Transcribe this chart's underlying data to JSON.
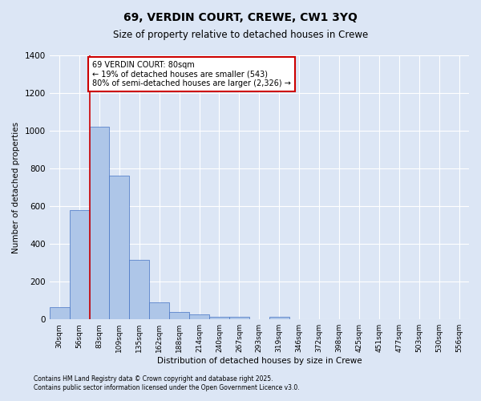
{
  "title": "69, VERDIN COURT, CREWE, CW1 3YQ",
  "subtitle": "Size of property relative to detached houses in Crewe",
  "xlabel": "Distribution of detached houses by size in Crewe",
  "ylabel": "Number of detached properties",
  "footer_line1": "Contains HM Land Registry data © Crown copyright and database right 2025.",
  "footer_line2": "Contains public sector information licensed under the Open Government Licence v3.0.",
  "bin_labels": [
    "30sqm",
    "56sqm",
    "83sqm",
    "109sqm",
    "135sqm",
    "162sqm",
    "188sqm",
    "214sqm",
    "240sqm",
    "267sqm",
    "293sqm",
    "319sqm",
    "346sqm",
    "372sqm",
    "398sqm",
    "425sqm",
    "451sqm",
    "477sqm",
    "503sqm",
    "530sqm",
    "556sqm"
  ],
  "bar_values": [
    65,
    580,
    1020,
    760,
    315,
    90,
    40,
    25,
    15,
    12,
    0,
    15,
    0,
    0,
    0,
    0,
    0,
    0,
    0,
    0,
    0
  ],
  "bar_color": "#aec6e8",
  "bar_edge_color": "#4472c4",
  "ylim": [
    0,
    1400
  ],
  "yticks": [
    0,
    200,
    400,
    600,
    800,
    1000,
    1200,
    1400
  ],
  "red_line_bin_index": 2,
  "annotation_text": "69 VERDIN COURT: 80sqm\n← 19% of detached houses are smaller (543)\n80% of semi-detached houses are larger (2,326) →",
  "annotation_box_color": "#ffffff",
  "annotation_box_edge_color": "#cc0000",
  "red_line_color": "#cc0000",
  "background_color": "#dce6f5",
  "grid_color": "#ffffff"
}
